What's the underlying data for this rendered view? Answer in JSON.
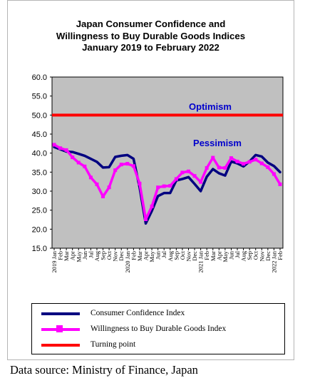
{
  "chart_data": {
    "type": "line",
    "title": [
      "Japan Consumer Confidence and",
      "Willingness to Buy Durable Goods Indices",
      "January 2019 to February 2022"
    ],
    "xlabel": "",
    "ylabel": "",
    "ylim": [
      15.0,
      60.0
    ],
    "yticks": [
      "60.0",
      "55.0",
      "50.0",
      "45.0",
      "40.0",
      "35.0",
      "30.0",
      "25.0",
      "20.0",
      "15.0"
    ],
    "grid": false,
    "legend_placement": "bottom",
    "plot_background": "#c0c0c0",
    "categories": [
      "2019 Jan",
      "Feb",
      "Mar",
      "Apr",
      "May",
      "Jun",
      "Jul",
      "Aug",
      "Sep",
      "Oct",
      "Nov",
      "Dec",
      "2020 Jan",
      "Feb",
      "Mar",
      "Apr",
      "May",
      "Jun",
      "Jul",
      "Aug",
      "Sep",
      "Oct",
      "Nov",
      "Dec",
      "2021 Jan",
      "Feb",
      "Mar",
      "Apr",
      "May",
      "Jun",
      "Jul",
      "Aug",
      "Sep",
      "Oct",
      "Nov",
      "Dec",
      "2022 Jan",
      "Feb"
    ],
    "series": [
      {
        "name": "Consumer Confidence Index",
        "color": "#000080",
        "marker": false,
        "values": [
          41.6,
          41.0,
          40.4,
          40.3,
          39.8,
          39.3,
          38.5,
          37.7,
          36.2,
          36.3,
          39.0,
          39.3,
          39.5,
          38.5,
          30.9,
          21.5,
          24.8,
          28.7,
          29.5,
          29.5,
          32.8,
          33.2,
          33.7,
          31.9,
          30.0,
          33.8,
          35.8,
          34.7,
          34.1,
          37.8,
          37.3,
          36.5,
          37.8,
          39.5,
          39.1,
          37.5,
          36.6,
          35.0
        ]
      },
      {
        "name": "Willingness to Buy Durable Goods Index",
        "color": "#ff00ff",
        "marker": true,
        "values": [
          42.2,
          41.3,
          40.8,
          38.9,
          37.5,
          36.5,
          33.6,
          31.8,
          28.6,
          31.0,
          35.5,
          37.0,
          37.2,
          36.6,
          32.0,
          22.6,
          26.0,
          31.0,
          31.3,
          31.4,
          33.2,
          34.9,
          35.2,
          34.0,
          32.4,
          36.1,
          38.8,
          36.2,
          36.1,
          38.7,
          37.8,
          37.2,
          37.7,
          38.3,
          37.3,
          36.3,
          34.5,
          31.8
        ]
      }
    ],
    "reference_lines": [
      {
        "name": "Turning point",
        "value": 50.0,
        "color": "#ff0000"
      }
    ],
    "annotations": [
      {
        "text": "Optimism",
        "color": "#0000cc"
      },
      {
        "text": "Pessimism",
        "color": "#0000cc"
      }
    ]
  },
  "legend": [
    {
      "label": "Consumer Confidence Index",
      "color": "#000080",
      "marker": false
    },
    {
      "label": "Willingness to Buy Durable Goods Index",
      "color": "#ff00ff",
      "marker": true
    },
    {
      "label": "Turning point",
      "color": "#ff0000",
      "marker": false
    }
  ],
  "source": "Data source: Ministry of Finance, Japan"
}
